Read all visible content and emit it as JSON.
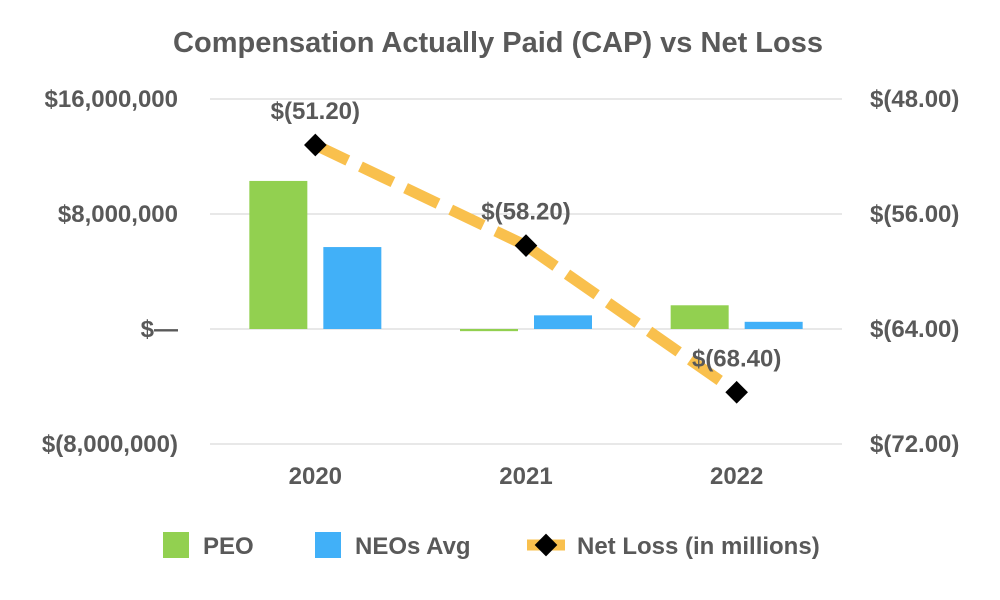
{
  "chart_data": {
    "type": "bar",
    "title": "Compensation Actually Paid (CAP) vs Net Loss",
    "categories": [
      "2020",
      "2021",
      "2022"
    ],
    "series": [
      {
        "name": "PEO",
        "kind": "bar",
        "axis": "left",
        "color": "#92d050",
        "values": [
          10300000,
          -150000,
          1650000
        ]
      },
      {
        "name": "NEOs Avg",
        "kind": "bar",
        "axis": "left",
        "color": "#41b0f8",
        "values": [
          5700000,
          950000,
          500000
        ]
      },
      {
        "name": "Net Loss (in millions)",
        "kind": "line",
        "axis": "right",
        "color": "#f9c04d",
        "marker_color": "#000000",
        "values": [
          -51.2,
          -58.2,
          -68.4
        ],
        "data_labels": [
          "$(51.20)",
          "$(58.20)",
          "$(68.40)"
        ]
      }
    ],
    "left_axis": {
      "ylim": [
        -8000000,
        16000000
      ],
      "ticks": [
        {
          "value": 16000000,
          "label": "$16,000,000"
        },
        {
          "value": 8000000,
          "label": "$8,000,000"
        },
        {
          "value": 0,
          "label": "$—"
        },
        {
          "value": -8000000,
          "label": "$(8,000,000)"
        }
      ]
    },
    "right_axis": {
      "ylim": [
        -48,
        -72
      ],
      "ticks": [
        {
          "value": -48,
          "label": "$(48.00)"
        },
        {
          "value": -56,
          "label": "$(56.00)"
        },
        {
          "value": -64,
          "label": "$(64.00)"
        },
        {
          "value": -72,
          "label": "$(72.00)"
        }
      ]
    },
    "grid": true,
    "legend_position": "bottom"
  }
}
